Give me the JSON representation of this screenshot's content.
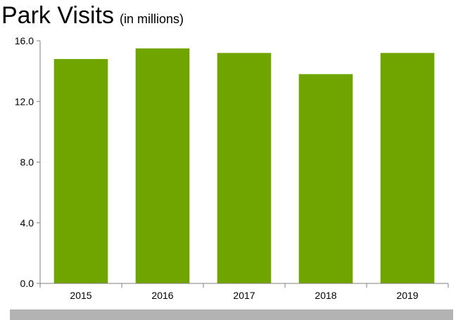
{
  "title": "Park Visits",
  "subtitle": "(in millions)",
  "colors": {
    "bar": "#70a500",
    "axis": "#7f7f7f",
    "footer_bar": "#b3b3b3",
    "text": "#000000"
  },
  "chart_data": {
    "type": "bar",
    "title": "Park Visits",
    "subtitle": "(in millions)",
    "xlabel": "",
    "ylabel": "",
    "categories": [
      "2015",
      "2016",
      "2017",
      "2018",
      "2019"
    ],
    "values": [
      14.8,
      15.5,
      15.2,
      13.8,
      15.2
    ],
    "ylim": [
      0,
      16
    ],
    "yticks": [
      0,
      4,
      8,
      12,
      16
    ],
    "ytick_labels": [
      "0.0",
      "4.0",
      "8.0",
      "12.0",
      "16.0"
    ],
    "grid": false,
    "legend": "none"
  }
}
